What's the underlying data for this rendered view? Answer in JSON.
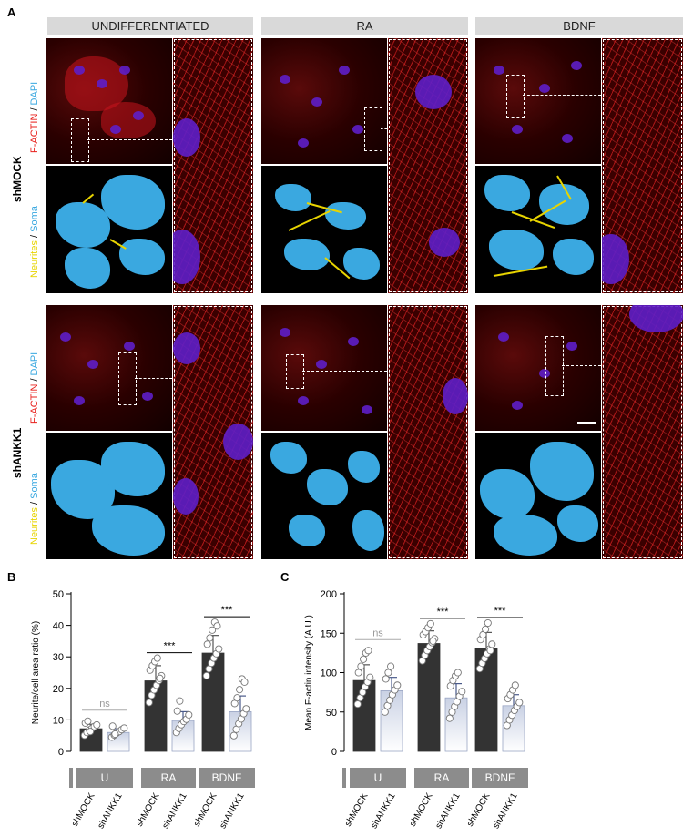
{
  "panels": {
    "a": "A",
    "b": "B",
    "c": "C"
  },
  "conditions": [
    "UNDIFFERENTIATED",
    "RA",
    "BDNF"
  ],
  "rows": {
    "shmock": "shMOCK",
    "shank1": "shANKK1"
  },
  "stain_labels": {
    "factin": "F-ACTIN",
    "sep": " / ",
    "dapi": "DAPI",
    "neurites": "Neurites",
    "soma": "Soma"
  },
  "colors": {
    "factin": "#e8201c",
    "dapi": "#3aa8e0",
    "neurites": "#e8d400",
    "soma": "#3aa8e0",
    "bar_mock": "#333333",
    "bar_ankk1_top": "#c9d1e4",
    "bar_ankk1_bottom": "#ffffff",
    "group_box": "#8c8c8c"
  },
  "chart_data": [
    {
      "type": "bar",
      "ylabel": "Neurite/cell area ratio (%)",
      "ylim": [
        0,
        50
      ],
      "yticks": [
        0,
        10,
        20,
        30,
        40,
        50
      ],
      "groups": [
        "U",
        "RA",
        "BDNF"
      ],
      "categories": [
        "shMOCK",
        "shANKK1",
        "shMOCK",
        "shANKK1",
        "shMOCK",
        "shANKK1"
      ],
      "values": [
        7.2,
        6.0,
        22.4,
        9.8,
        31.2,
        12.6
      ],
      "errors": [
        1.4,
        1.2,
        4.8,
        2.8,
        5.6,
        5.0
      ],
      "points": [
        [
          5.1,
          6.0,
          6.8,
          7.3,
          7.9,
          8.4,
          9.0,
          9.6,
          6.3
        ],
        [
          4.5,
          5.2,
          5.8,
          6.3,
          6.9,
          7.4,
          8.0,
          5.5
        ],
        [
          15.5,
          17.8,
          19.5,
          21.0,
          22.5,
          24.0,
          25.8,
          27.2,
          28.5,
          29.6,
          23.2
        ],
        [
          6.0,
          7.3,
          8.5,
          9.5,
          10.2,
          11.6,
          12.8,
          16.0
        ],
        [
          24.0,
          26.2,
          28.0,
          29.6,
          31.0,
          32.5,
          34.0,
          36.0,
          38.5,
          41.0,
          39.8
        ],
        [
          5.0,
          7.0,
          8.8,
          10.3,
          12.0,
          13.5,
          15.2,
          17.0,
          19.6,
          23.0,
          22.0
        ]
      ],
      "significance": [
        "ns",
        "***",
        "***"
      ]
    },
    {
      "type": "bar",
      "ylabel": "Mean F-actin intensity (A.U.)",
      "ylim": [
        0,
        200
      ],
      "yticks": [
        0,
        50,
        100,
        150,
        200
      ],
      "groups": [
        "U",
        "RA",
        "BDNF"
      ],
      "categories": [
        "shMOCK",
        "shANKK1",
        "shMOCK",
        "shANKK1",
        "shMOCK",
        "shANKK1"
      ],
      "values": [
        90,
        77,
        137,
        68,
        131,
        58
      ],
      "errors": [
        20,
        17,
        16,
        18,
        20,
        14
      ],
      "points": [
        [
          60,
          68,
          75,
          82,
          88,
          94,
          100,
          108,
          117,
          125,
          128
        ],
        [
          50,
          58,
          65,
          72,
          78,
          84,
          92,
          100,
          108
        ],
        [
          115,
          122,
          128,
          133,
          138,
          143,
          148,
          152,
          157,
          162,
          140
        ],
        [
          42,
          50,
          57,
          63,
          70,
          76,
          83,
          90,
          96,
          100
        ],
        [
          105,
          112,
          118,
          124,
          130,
          136,
          142,
          148,
          155,
          163,
          128
        ],
        [
          33,
          40,
          46,
          52,
          57,
          62,
          67,
          72,
          78,
          84
        ]
      ],
      "significance": [
        "ns",
        "***",
        "***"
      ]
    }
  ]
}
